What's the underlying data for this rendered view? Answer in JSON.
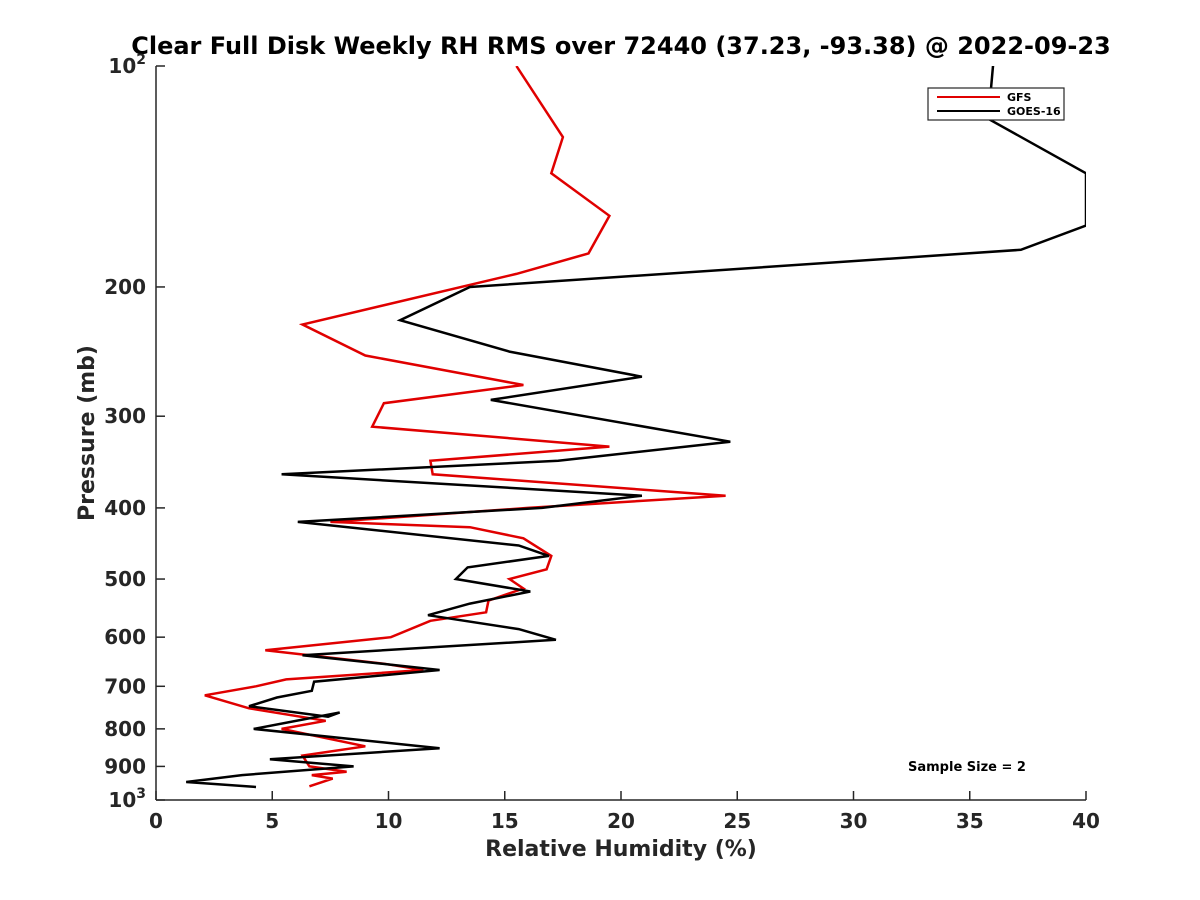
{
  "chart_data": {
    "type": "line",
    "title": "Clear Full Disk Weekly RH RMS over 72440 (37.23, -93.38) @ 2022-09-23",
    "xlabel": "Relative Humidity (%)",
    "ylabel": "Pressure (mb)",
    "xlim": [
      0,
      40
    ],
    "ylim": [
      100,
      1000
    ],
    "y_scale": "log",
    "y_reversed": true,
    "grid": false,
    "legend_position": "top-right",
    "annotation": "Sample Size = 2",
    "xticks": [
      0,
      5,
      10,
      15,
      20,
      25,
      30,
      35,
      40
    ],
    "xtick_labels": [
      "0",
      "5",
      "10",
      "15",
      "20",
      "25",
      "30",
      "35",
      "40"
    ],
    "yticks": [
      100,
      200,
      300,
      400,
      500,
      600,
      700,
      800,
      900,
      1000
    ],
    "ytick_labels": [
      {
        "base": "10",
        "exp": "2"
      },
      {
        "base": "200",
        "exp": ""
      },
      {
        "base": "300",
        "exp": ""
      },
      {
        "base": "400",
        "exp": ""
      },
      {
        "base": "500",
        "exp": ""
      },
      {
        "base": "600",
        "exp": ""
      },
      {
        "base": "700",
        "exp": ""
      },
      {
        "base": "800",
        "exp": ""
      },
      {
        "base": "900",
        "exp": ""
      },
      {
        "base": "10",
        "exp": "3"
      }
    ],
    "series": [
      {
        "name": "GFS",
        "color": "#e00000",
        "points": [
          [
            15.5,
            100
          ],
          [
            17.5,
            125
          ],
          [
            17.0,
            140
          ],
          [
            19.5,
            160
          ],
          [
            18.6,
            180
          ],
          [
            15.5,
            192
          ],
          [
            6.3,
            225
          ],
          [
            9.0,
            248
          ],
          [
            15.8,
            272
          ],
          [
            9.8,
            288
          ],
          [
            9.3,
            310
          ],
          [
            19.5,
            330
          ],
          [
            11.8,
            345
          ],
          [
            11.9,
            360
          ],
          [
            24.5,
            385
          ],
          [
            16.0,
            400
          ],
          [
            7.5,
            418
          ],
          [
            13.5,
            425
          ],
          [
            15.8,
            440
          ],
          [
            17.0,
            465
          ],
          [
            16.8,
            485
          ],
          [
            15.2,
            500
          ],
          [
            15.8,
            515
          ],
          [
            14.3,
            535
          ],
          [
            14.2,
            555
          ],
          [
            11.8,
            570
          ],
          [
            10.1,
            600
          ],
          [
            4.7,
            625
          ],
          [
            9.8,
            652
          ],
          [
            11.5,
            665
          ],
          [
            5.6,
            685
          ],
          [
            4.3,
            700
          ],
          [
            2.1,
            720
          ],
          [
            4.0,
            750
          ],
          [
            7.3,
            780
          ],
          [
            5.4,
            800
          ],
          [
            9.0,
            845
          ],
          [
            6.3,
            870
          ],
          [
            6.6,
            900
          ],
          [
            8.2,
            915
          ],
          [
            6.7,
            925
          ],
          [
            7.6,
            935
          ],
          [
            6.6,
            958
          ]
        ]
      },
      {
        "name": "GOES-16",
        "color": "#000000",
        "points": [
          [
            40.0,
            55
          ],
          [
            36.0,
            100
          ],
          [
            35.8,
            118
          ],
          [
            40.0,
            140
          ],
          [
            40.0,
            165
          ],
          [
            37.2,
            178
          ],
          [
            13.5,
            200
          ],
          [
            10.5,
            222
          ],
          [
            15.2,
            245
          ],
          [
            20.9,
            265
          ],
          [
            14.4,
            285
          ],
          [
            24.7,
            325
          ],
          [
            17.3,
            345
          ],
          [
            5.4,
            360
          ],
          [
            20.9,
            385
          ],
          [
            16.6,
            400
          ],
          [
            6.1,
            418
          ],
          [
            15.6,
            450
          ],
          [
            16.9,
            465
          ],
          [
            13.4,
            482
          ],
          [
            12.9,
            500
          ],
          [
            16.1,
            520
          ],
          [
            13.5,
            540
          ],
          [
            11.7,
            560
          ],
          [
            15.6,
            585
          ],
          [
            17.2,
            605
          ],
          [
            6.3,
            635
          ],
          [
            12.2,
            665
          ],
          [
            6.8,
            690
          ],
          [
            6.7,
            710
          ],
          [
            5.2,
            725
          ],
          [
            4.0,
            745
          ],
          [
            7.4,
            770
          ],
          [
            7.9,
            760
          ],
          [
            4.2,
            800
          ],
          [
            12.2,
            850
          ],
          [
            4.9,
            880
          ],
          [
            8.5,
            900
          ],
          [
            3.7,
            925
          ],
          [
            1.3,
            945
          ],
          [
            4.3,
            960
          ]
        ]
      }
    ]
  }
}
